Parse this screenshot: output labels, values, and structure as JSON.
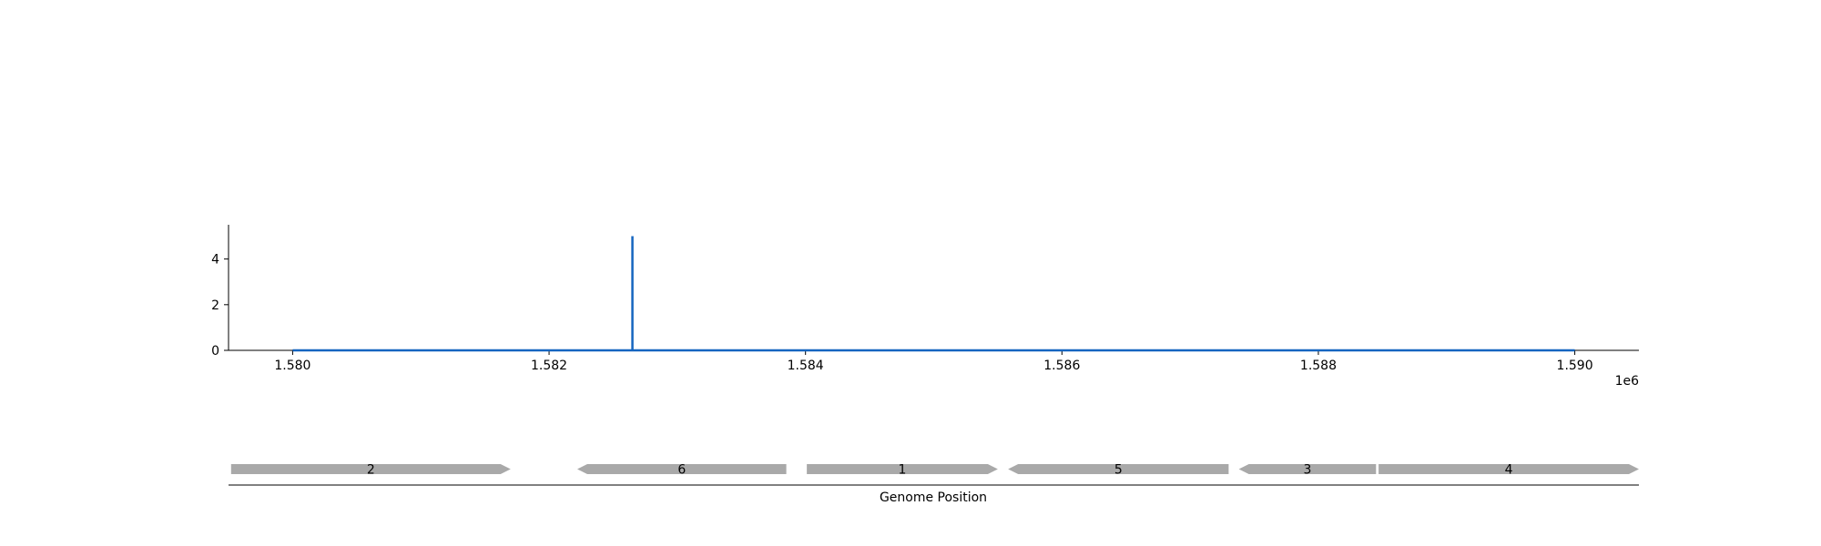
{
  "chart_data": {
    "type": "line",
    "title": "",
    "ylabel": "",
    "xlabel": "",
    "x_offset_label": "1e6",
    "xlim": [
      1579500,
      1590500
    ],
    "ylim": [
      0,
      5.5
    ],
    "x_ticks": [
      1580000,
      1582000,
      1584000,
      1586000,
      1588000,
      1590000
    ],
    "x_tick_labels": [
      "1.580",
      "1.582",
      "1.584",
      "1.586",
      "1.588",
      "1.590"
    ],
    "y_ticks": [
      0,
      2,
      4
    ],
    "y_tick_labels": [
      "0",
      "2",
      "4"
    ],
    "grid": false,
    "line_color": "#1565c0",
    "series": [
      {
        "x": [
          1580000,
          1582650,
          1582650,
          1582650,
          1582650,
          1590000
        ],
        "y": [
          0,
          0,
          5,
          5,
          0,
          0
        ]
      }
    ]
  },
  "gene_track": {
    "label": "Genome Position",
    "color": "#a9a9a9",
    "genes": [
      {
        "name": "2",
        "start": 1579520,
        "end": 1581700,
        "strand": "+"
      },
      {
        "name": "6",
        "start": 1582220,
        "end": 1583850,
        "strand": "-"
      },
      {
        "name": "1",
        "start": 1584010,
        "end": 1585500,
        "strand": "+"
      },
      {
        "name": "5",
        "start": 1585580,
        "end": 1587300,
        "strand": "-"
      },
      {
        "name": "3",
        "start": 1587380,
        "end": 1588450,
        "strand": "-"
      },
      {
        "name": "4",
        "start": 1588470,
        "end": 1590500,
        "strand": "+"
      }
    ]
  }
}
